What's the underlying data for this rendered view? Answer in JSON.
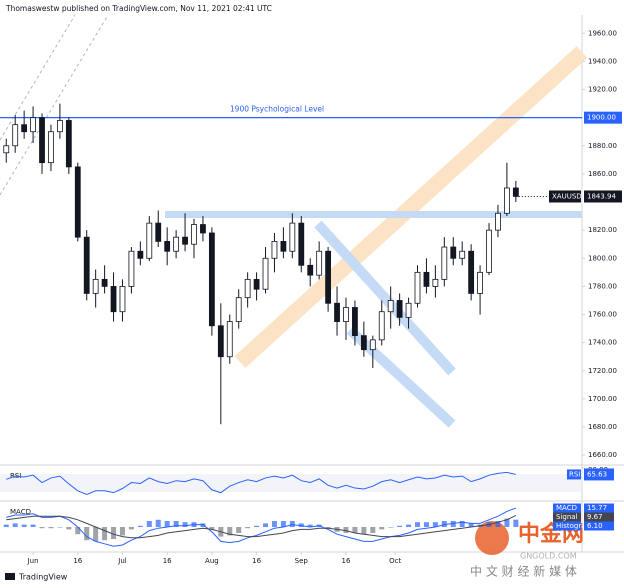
{
  "chart_data": {
    "type": "candlestick",
    "header": "Thomaswestw published on TradingView.com, Nov 11, 2021 02:41 UTC",
    "up_color": "#ffffff",
    "down_color": "#131722",
    "candles": [
      [
        1875,
        1885,
        1868,
        1880
      ],
      [
        1880,
        1902,
        1875,
        1895
      ],
      [
        1895,
        1905,
        1885,
        1890
      ],
      [
        1890,
        1908,
        1882,
        1900
      ],
      [
        1900,
        1903,
        1860,
        1868
      ],
      [
        1868,
        1895,
        1862,
        1890
      ],
      [
        1890,
        1910,
        1885,
        1898
      ],
      [
        1898,
        1900,
        1860,
        1865
      ],
      [
        1865,
        1868,
        1812,
        1815
      ],
      [
        1815,
        1820,
        1770,
        1775
      ],
      [
        1775,
        1792,
        1765,
        1785
      ],
      [
        1785,
        1795,
        1775,
        1780
      ],
      [
        1780,
        1790,
        1755,
        1762
      ],
      [
        1762,
        1785,
        1755,
        1780
      ],
      [
        1780,
        1808,
        1775,
        1805
      ],
      [
        1805,
        1812,
        1795,
        1800
      ],
      [
        1800,
        1830,
        1798,
        1825
      ],
      [
        1825,
        1834,
        1808,
        1812
      ],
      [
        1812,
        1822,
        1795,
        1805
      ],
      [
        1805,
        1820,
        1800,
        1815
      ],
      [
        1815,
        1832,
        1805,
        1810
      ],
      [
        1810,
        1828,
        1800,
        1824
      ],
      [
        1824,
        1830,
        1812,
        1818
      ],
      [
        1818,
        1822,
        1745,
        1752
      ],
      [
        1752,
        1768,
        1682,
        1730
      ],
      [
        1730,
        1760,
        1725,
        1755
      ],
      [
        1755,
        1778,
        1750,
        1772
      ],
      [
        1772,
        1790,
        1765,
        1785
      ],
      [
        1785,
        1790,
        1770,
        1778
      ],
      [
        1778,
        1808,
        1775,
        1800
      ],
      [
        1800,
        1818,
        1790,
        1812
      ],
      [
        1812,
        1822,
        1800,
        1805
      ],
      [
        1805,
        1832,
        1800,
        1825
      ],
      [
        1825,
        1830,
        1790,
        1795
      ],
      [
        1795,
        1800,
        1780,
        1788
      ],
      [
        1788,
        1812,
        1785,
        1805
      ],
      [
        1805,
        1808,
        1762,
        1768
      ],
      [
        1768,
        1780,
        1745,
        1755
      ],
      [
        1755,
        1772,
        1742,
        1765
      ],
      [
        1765,
        1770,
        1738,
        1745
      ],
      [
        1745,
        1755,
        1730,
        1735
      ],
      [
        1735,
        1745,
        1722,
        1742
      ],
      [
        1742,
        1770,
        1738,
        1762
      ],
      [
        1762,
        1780,
        1750,
        1770
      ],
      [
        1770,
        1775,
        1752,
        1758
      ],
      [
        1758,
        1772,
        1750,
        1768
      ],
      [
        1768,
        1795,
        1765,
        1790
      ],
      [
        1790,
        1800,
        1775,
        1780
      ],
      [
        1780,
        1795,
        1772,
        1785
      ],
      [
        1785,
        1815,
        1780,
        1808
      ],
      [
        1808,
        1815,
        1795,
        1800
      ],
      [
        1800,
        1812,
        1795,
        1805
      ],
      [
        1805,
        1810,
        1770,
        1775
      ],
      [
        1775,
        1795,
        1760,
        1790
      ],
      [
        1790,
        1825,
        1788,
        1820
      ],
      [
        1820,
        1838,
        1815,
        1832
      ],
      [
        1832,
        1868,
        1830,
        1850
      ],
      [
        1850,
        1855,
        1840,
        1844
      ]
    ],
    "xlim": [
      -0.7,
      64.4
    ],
    "xticks": [
      {
        "value": 3,
        "label": "Jun"
      },
      {
        "value": 8,
        "label": "16"
      },
      {
        "value": 13,
        "label": "Jul"
      },
      {
        "value": 18,
        "label": "16"
      },
      {
        "value": 23,
        "label": "Aug"
      },
      {
        "value": 28,
        "label": "16"
      },
      {
        "value": 33,
        "label": "Sep"
      },
      {
        "value": 38,
        "label": "16"
      },
      {
        "value": 43.5,
        "label": "Oct"
      }
    ],
    "ylim": [
      1653,
      1973
    ],
    "yticks": [
      {
        "value": 1660,
        "label": "1660.00"
      },
      {
        "value": 1680,
        "label": "1680.00"
      },
      {
        "value": 1700,
        "label": "1700.00"
      },
      {
        "value": 1720,
        "label": "1720.00"
      },
      {
        "value": 1740,
        "label": "1740.00"
      },
      {
        "value": 1760,
        "label": "1760.00"
      },
      {
        "value": 1780,
        "label": "1780.00"
      },
      {
        "value": 1800,
        "label": "1800.00"
      },
      {
        "value": 1820,
        "label": "1820.00"
      },
      {
        "value": 1860,
        "label": "1860.00"
      },
      {
        "value": 1880,
        "label": "1880.00"
      },
      {
        "value": 1920,
        "label": "1920.00"
      },
      {
        "value": 1940,
        "label": "1940.00"
      },
      {
        "value": 1960,
        "label": "1960.00"
      }
    ],
    "hline": {
      "value": 1900,
      "label": "1900.00",
      "text": "1900 Psychological Level",
      "color": "#2962ff"
    },
    "last_price": {
      "symbol": "XAUUSD",
      "value": 1843.94
    },
    "rsi": {
      "name": "RSI",
      "color": "#2962ff",
      "ylim": [
        10,
        84
      ],
      "yticks": [
        {
          "value": 80,
          "label": "80.00"
        }
      ],
      "values": [
        55,
        62,
        60,
        64,
        48,
        58,
        62,
        45,
        30,
        22,
        30,
        30,
        26,
        35,
        48,
        46,
        58,
        50,
        46,
        52,
        50,
        56,
        52,
        32,
        26,
        40,
        48,
        54,
        50,
        58,
        62,
        58,
        64,
        52,
        48,
        56,
        42,
        36,
        42,
        36,
        34,
        40,
        50,
        54,
        48,
        54,
        60,
        56,
        58,
        64,
        60,
        62,
        50,
        56,
        64,
        68,
        70,
        65.63
      ]
    },
    "macd": {
      "name": "MACD",
      "ylim": [
        -20,
        20
      ],
      "series": [
        {
          "name": "MACD",
          "color": "#2962ff",
          "values": [
            8,
            10,
            10,
            11,
            8,
            8,
            9,
            6,
            0,
            -8,
            -12,
            -14,
            -16,
            -15,
            -11,
            -8,
            -3,
            -1,
            0,
            1,
            1,
            2,
            2,
            -4,
            -12,
            -13,
            -12,
            -9,
            -7,
            -4,
            -1,
            0,
            2,
            1,
            0,
            1,
            -2,
            -6,
            -8,
            -10,
            -12,
            -12,
            -10,
            -8,
            -7,
            -5,
            -2,
            -1,
            0,
            2,
            3,
            4,
            3,
            3,
            6,
            9,
            13,
            15.77
          ]
        },
        {
          "name": "Signal",
          "color": "#434651",
          "values": [
            6,
            7,
            8,
            9,
            9,
            9,
            9,
            8,
            6,
            3,
            0,
            -3,
            -6,
            -8,
            -9,
            -9,
            -8,
            -7,
            -5,
            -4,
            -3,
            -2,
            -1,
            -2,
            -4,
            -6,
            -7,
            -8,
            -8,
            -7,
            -6,
            -5,
            -3,
            -2,
            -2,
            -1,
            -1,
            -2,
            -3,
            -5,
            -6,
            -7,
            -8,
            -8,
            -8,
            -7,
            -6,
            -5,
            -4,
            -3,
            -2,
            -1,
            0,
            1,
            2,
            4,
            6,
            9.67
          ]
        }
      ],
      "histogram": {
        "name": "Histogram",
        "color": "#2962ff",
        "neg_color": "#787b86",
        "values": [
          2,
          3,
          2,
          2,
          -1,
          -1,
          0,
          -2,
          -6,
          -11,
          -12,
          -11,
          -10,
          -7,
          -2,
          1,
          5,
          6,
          5,
          5,
          4,
          4,
          3,
          -2,
          -8,
          -7,
          -5,
          -1,
          1,
          3,
          5,
          5,
          5,
          3,
          2,
          2,
          -1,
          -4,
          -5,
          -5,
          -6,
          -5,
          -2,
          0,
          1,
          2,
          4,
          4,
          4,
          5,
          5,
          5,
          3,
          2,
          4,
          5,
          7,
          6.1
        ],
        "value_labels": [
          null,
          null,
          null,
          null,
          null,
          null,
          null,
          null,
          null,
          null,
          null,
          null,
          null,
          null,
          null,
          null,
          null,
          null,
          null,
          null,
          null,
          null,
          null,
          null,
          null,
          null,
          null,
          null,
          null,
          null,
          null,
          null,
          null,
          null,
          null,
          null,
          null,
          null,
          null,
          null,
          null,
          null,
          null,
          null,
          null,
          null,
          null,
          null,
          null,
          null,
          null,
          null,
          null,
          null,
          null,
          null,
          null,
          "6.10"
        ]
      }
    },
    "footer": "TradingView",
    "watermark": {
      "brand": "中金网",
      "site": "GNGOLD.COM",
      "tagline": "中 文 财 经 新 媒 体"
    }
  }
}
